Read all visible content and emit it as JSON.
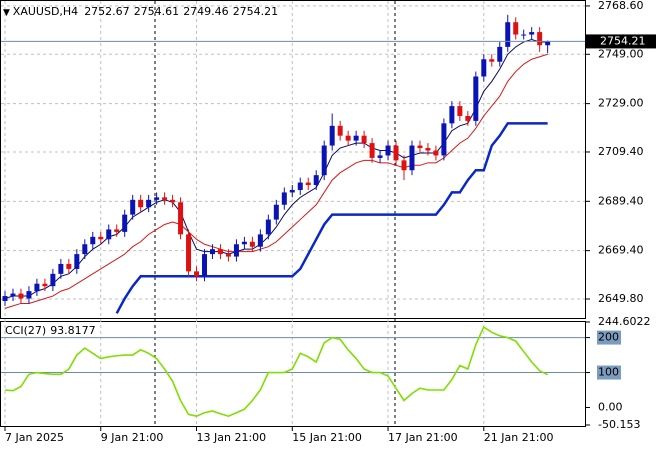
{
  "chart_data": [
    {
      "type": "candlestick",
      "title": "XAUUSD,H4",
      "open": [
        2649,
        2651,
        2652,
        2650,
        2653,
        2656,
        2655,
        2660,
        2664,
        2662,
        2668,
        2672,
        2675,
        2674,
        2678,
        2677,
        2684,
        2690,
        2687,
        2690,
        2691,
        2690,
        2689,
        2676,
        2661,
        2659,
        2668,
        2670,
        2668,
        2667,
        2672,
        2673,
        2671,
        2676,
        2682,
        2688,
        2693,
        2694,
        2697,
        2696,
        2700,
        2712,
        2720,
        2716,
        2714,
        2716,
        2713,
        2707,
        2708,
        2712,
        2706,
        2702,
        2712,
        2711,
        2710,
        2708,
        2721,
        2728,
        2724,
        2722,
        2740,
        2747,
        2746,
        2752,
        2762,
        2757,
        2757,
        2758,
        2752.67
      ],
      "high": [
        2653,
        2654,
        2654,
        2655,
        2658,
        2658,
        2662,
        2666,
        2666,
        2670,
        2674,
        2677,
        2677,
        2680,
        2680,
        2686,
        2692,
        2692,
        2692,
        2693,
        2693,
        2692,
        2691,
        2678,
        2663,
        2670,
        2672,
        2672,
        2670,
        2674,
        2675,
        2675,
        2678,
        2684,
        2690,
        2695,
        2696,
        2699,
        2699,
        2702,
        2714,
        2725,
        2722,
        2718,
        2718,
        2718,
        2715,
        2710,
        2714,
        2714,
        2708,
        2714,
        2714,
        2713,
        2712,
        2723,
        2730,
        2730,
        2726,
        2742,
        2749,
        2749,
        2754,
        2765,
        2764,
        2759,
        2760,
        2760,
        2754.61
      ],
      "low": [
        2647,
        2649,
        2648,
        2648,
        2651,
        2653,
        2653,
        2658,
        2660,
        2660,
        2666,
        2670,
        2672,
        2672,
        2675,
        2675,
        2682,
        2685,
        2685,
        2688,
        2688,
        2687,
        2674,
        2659,
        2657,
        2657,
        2666,
        2666,
        2665,
        2665,
        2670,
        2669,
        2669,
        2674,
        2680,
        2686,
        2691,
        2692,
        2694,
        2694,
        2698,
        2710,
        2714,
        2712,
        2712,
        2711,
        2705,
        2705,
        2706,
        2704,
        2698,
        2700,
        2709,
        2708,
        2706,
        2706,
        2719,
        2722,
        2720,
        2720,
        2738,
        2744,
        2744,
        2750,
        2755,
        2755,
        2755,
        2750,
        2749.46
      ],
      "close": [
        2651,
        2652,
        2650,
        2653,
        2656,
        2655,
        2660,
        2664,
        2662,
        2668,
        2672,
        2675,
        2674,
        2678,
        2677,
        2684,
        2690,
        2687,
        2690,
        2691,
        2690,
        2689,
        2676,
        2661,
        2659,
        2668,
        2670,
        2668,
        2667,
        2672,
        2673,
        2671,
        2676,
        2682,
        2688,
        2693,
        2694,
        2697,
        2696,
        2700,
        2712,
        2720,
        2716,
        2714,
        2716,
        2713,
        2707,
        2708,
        2712,
        2706,
        2702,
        2712,
        2711,
        2710,
        2708,
        2721,
        2728,
        2724,
        2722,
        2740,
        2747,
        2746,
        2752,
        2762,
        2757,
        2757,
        2758,
        2752.67,
        2754.21
      ],
      "up_color": "#0a14b4",
      "down_color": "#e01010",
      "series": [
        {
          "color": "#0a0a60",
          "values": [
            2650,
            2651,
            2651,
            2651,
            2653,
            2654,
            2656,
            2659,
            2660,
            2663,
            2667,
            2670,
            2672,
            2675,
            2676,
            2679,
            2683,
            2685,
            2687,
            2689,
            2690,
            2689,
            2685,
            2677,
            2670,
            2669,
            2669,
            2669,
            2668,
            2669,
            2670,
            2670,
            2672,
            2675,
            2679,
            2684,
            2688,
            2691,
            2693,
            2695,
            2701,
            2708,
            2711,
            2712,
            2713,
            2713,
            2711,
            2710,
            2710,
            2709,
            2707,
            2708,
            2709,
            2709,
            2709,
            2713,
            2718,
            2720,
            2721,
            2727,
            2734,
            2738,
            2743,
            2749,
            2752,
            2754,
            2755,
            2754,
            2754
          ]
        },
        {
          "color": "#d81818",
          "values": [
            2646,
            2647,
            2648,
            2648,
            2649,
            2650,
            2651,
            2653,
            2654,
            2656,
            2658,
            2660,
            2662,
            2664,
            2666,
            2668,
            2671,
            2673,
            2676,
            2678,
            2680,
            2681,
            2680,
            2677,
            2674,
            2672,
            2671,
            2670,
            2669,
            2669,
            2669,
            2669,
            2670,
            2671,
            2673,
            2676,
            2679,
            2682,
            2685,
            2688,
            2693,
            2698,
            2701,
            2703,
            2705,
            2706,
            2706,
            2705,
            2705,
            2704,
            2703,
            2704,
            2704,
            2705,
            2705,
            2707,
            2710,
            2713,
            2715,
            2719,
            2724,
            2728,
            2732,
            2738,
            2742,
            2745,
            2747,
            2748,
            2749
          ]
        },
        {
          "color": "#0a28c8",
          "values": [
            null,
            null,
            null,
            null,
            null,
            null,
            null,
            null,
            null,
            null,
            null,
            null,
            null,
            null,
            2644,
            2650,
            2655,
            2659,
            2659,
            2659,
            2659,
            2659,
            2659,
            2659,
            2659,
            2659,
            2659,
            2659,
            2659,
            2659,
            2659,
            2659,
            2659,
            2659,
            2659,
            2659,
            2659,
            2662,
            2668,
            2674,
            2680,
            2684,
            2684,
            2684,
            2684,
            2684,
            2684,
            2684,
            2684,
            2684,
            2684,
            2684,
            2684,
            2684,
            2684,
            2688,
            2693,
            2693,
            2698,
            2702,
            2702,
            2712,
            2716,
            2721,
            2721,
            2721,
            2721,
            2721,
            2721
          ]
        }
      ],
      "ylim": [
        2642.1,
        2770.6
      ],
      "yticks": [
        {
          "value": 2768.6,
          "label": "2768.60"
        },
        {
          "value": 2749,
          "label": "2749.00"
        },
        {
          "value": 2729,
          "label": "2729.00"
        },
        {
          "value": 2709.4,
          "label": "2709.40"
        },
        {
          "value": 2689.4,
          "label": "2689.40"
        },
        {
          "value": 2669.4,
          "label": "2669.40"
        },
        {
          "value": 2649.8,
          "label": "2649.80"
        }
      ],
      "xticks": [
        {
          "value": 0,
          "label": "7 Jan 2025"
        },
        {
          "value": 12,
          "label": "9 Jan 21:00"
        },
        {
          "value": 24,
          "label": "13 Jan 21:00"
        },
        {
          "value": 36,
          "label": "15 Jan 21:00"
        },
        {
          "value": 48,
          "label": "17 Jan 21:00"
        },
        {
          "value": 60,
          "label": "21 Jan 21:00"
        }
      ],
      "grid": true
    },
    {
      "type": "line",
      "title": "CCI(27)",
      "color": "#7ee000",
      "values": [
        50,
        48,
        60,
        95,
        100,
        97,
        95,
        95,
        110,
        150,
        170,
        155,
        140,
        145,
        148,
        150,
        150,
        165,
        155,
        140,
        110,
        75,
        20,
        -20,
        -25,
        -15,
        -10,
        -18,
        -25,
        -15,
        -5,
        20,
        50,
        100,
        100,
        100,
        110,
        155,
        145,
        130,
        185,
        200,
        195,
        165,
        140,
        110,
        100,
        100,
        90,
        55,
        20,
        40,
        55,
        50,
        50,
        50,
        80,
        120,
        110,
        180,
        230,
        215,
        205,
        200,
        190,
        160,
        130,
        105,
        93.8177
      ],
      "ylim": [
        -50.153,
        244.6022
      ],
      "yticks": [
        244.6022,
        200,
        100,
        {
          "value": 0,
          "label": "0.00"
        },
        -50.153
      ],
      "levels": [
        200,
        100
      ]
    }
  ]
}
